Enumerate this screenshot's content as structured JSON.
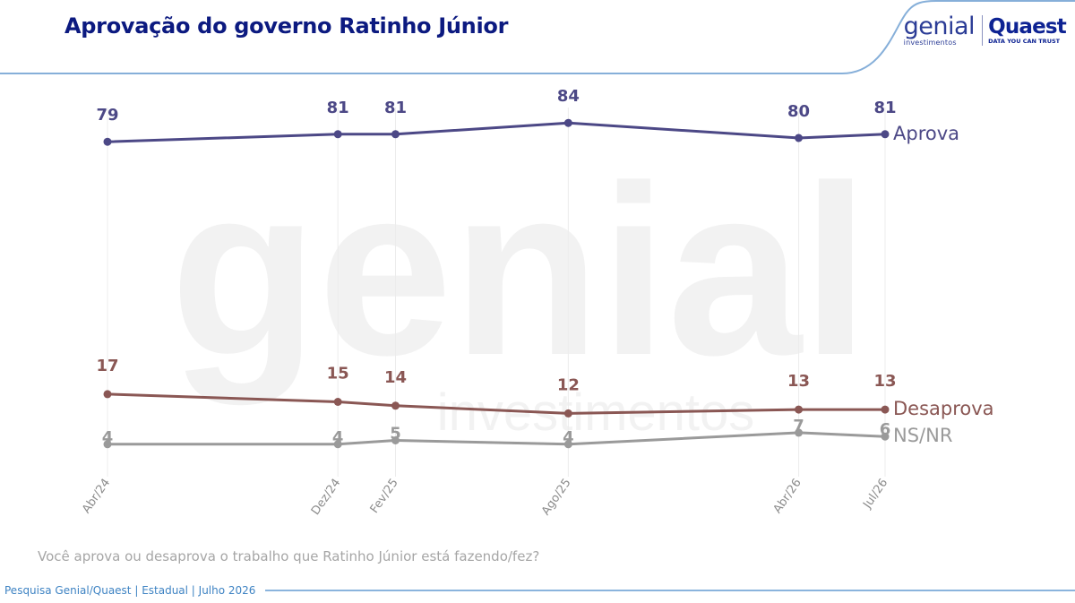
{
  "header": {
    "title": "Aprovação do governo Ratinho Júnior"
  },
  "logos": {
    "genial_word": "genial",
    "genial_sub": "investimentos",
    "quaest_word": "Quaest",
    "quaest_sub": "DATA YOU CAN TRUST"
  },
  "watermark": {
    "word": "genial",
    "sub": "investimentos"
  },
  "question": "Você aprova ou desaprova o trabalho que Ratinho Júnior está fazendo/fez?",
  "footer": {
    "source": "Pesquisa Genial/Quaest | Estadual | Julho 2026"
  },
  "colors": {
    "title": "#0c1a80",
    "header_curve": "#86afd9",
    "footer_text": "#3e83c3"
  },
  "chart_data": {
    "type": "line",
    "title": "Aprovação do governo Ratinho Júnior",
    "x": [
      "Abr/24",
      "Dez/24",
      "Fev/25",
      "Ago/25",
      "Abr/26",
      "Jul/26"
    ],
    "x_month_index": [
      0,
      8,
      10,
      16,
      24,
      27
    ],
    "ylim": [
      0,
      100
    ],
    "grid": "vertical",
    "series": [
      {
        "name": "Aprova",
        "values": [
          79,
          81,
          81,
          84,
          80,
          81
        ],
        "color": "#4c4886"
      },
      {
        "name": "Desaprova",
        "values": [
          17,
          15,
          14,
          12,
          13,
          13
        ],
        "color": "#8a5754"
      },
      {
        "name": "NS/NR",
        "values": [
          4,
          4,
          5,
          4,
          7,
          6
        ],
        "color": "#9a9a9a"
      }
    ]
  }
}
